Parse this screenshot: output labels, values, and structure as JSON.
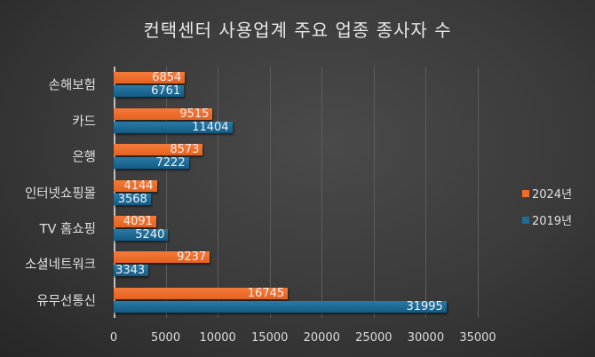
{
  "chart_data": {
    "type": "bar",
    "orientation": "horizontal",
    "title": "컨택센터 사용업계 주요 업종 종사자 수",
    "xlabel": "",
    "ylabel": "",
    "categories": [
      "손해보험",
      "카드",
      "은행",
      "인터넷쇼핑몰",
      "TV 홈쇼핑",
      "소셜네트워크",
      "유무선통신"
    ],
    "series": [
      {
        "name": "2024년",
        "color": "#ed6d2a",
        "values": [
          6854,
          9515,
          8573,
          4144,
          4091,
          9237,
          16745
        ]
      },
      {
        "name": "2019년",
        "color": "#1f6b94",
        "values": [
          6761,
          11404,
          7222,
          3568,
          5240,
          3343,
          31995
        ]
      }
    ],
    "xlim": [
      0,
      35000
    ],
    "xticks": [
      "0",
      "5000",
      "10000",
      "15000",
      "20000",
      "25000",
      "30000",
      "35000"
    ],
    "grid": true,
    "legend_position": "right",
    "data_labels": true
  },
  "title": "컨택센터 사용업계 주요 업종 종사자 수",
  "legend": {
    "s2024": "2024년",
    "s2019": "2019년"
  }
}
